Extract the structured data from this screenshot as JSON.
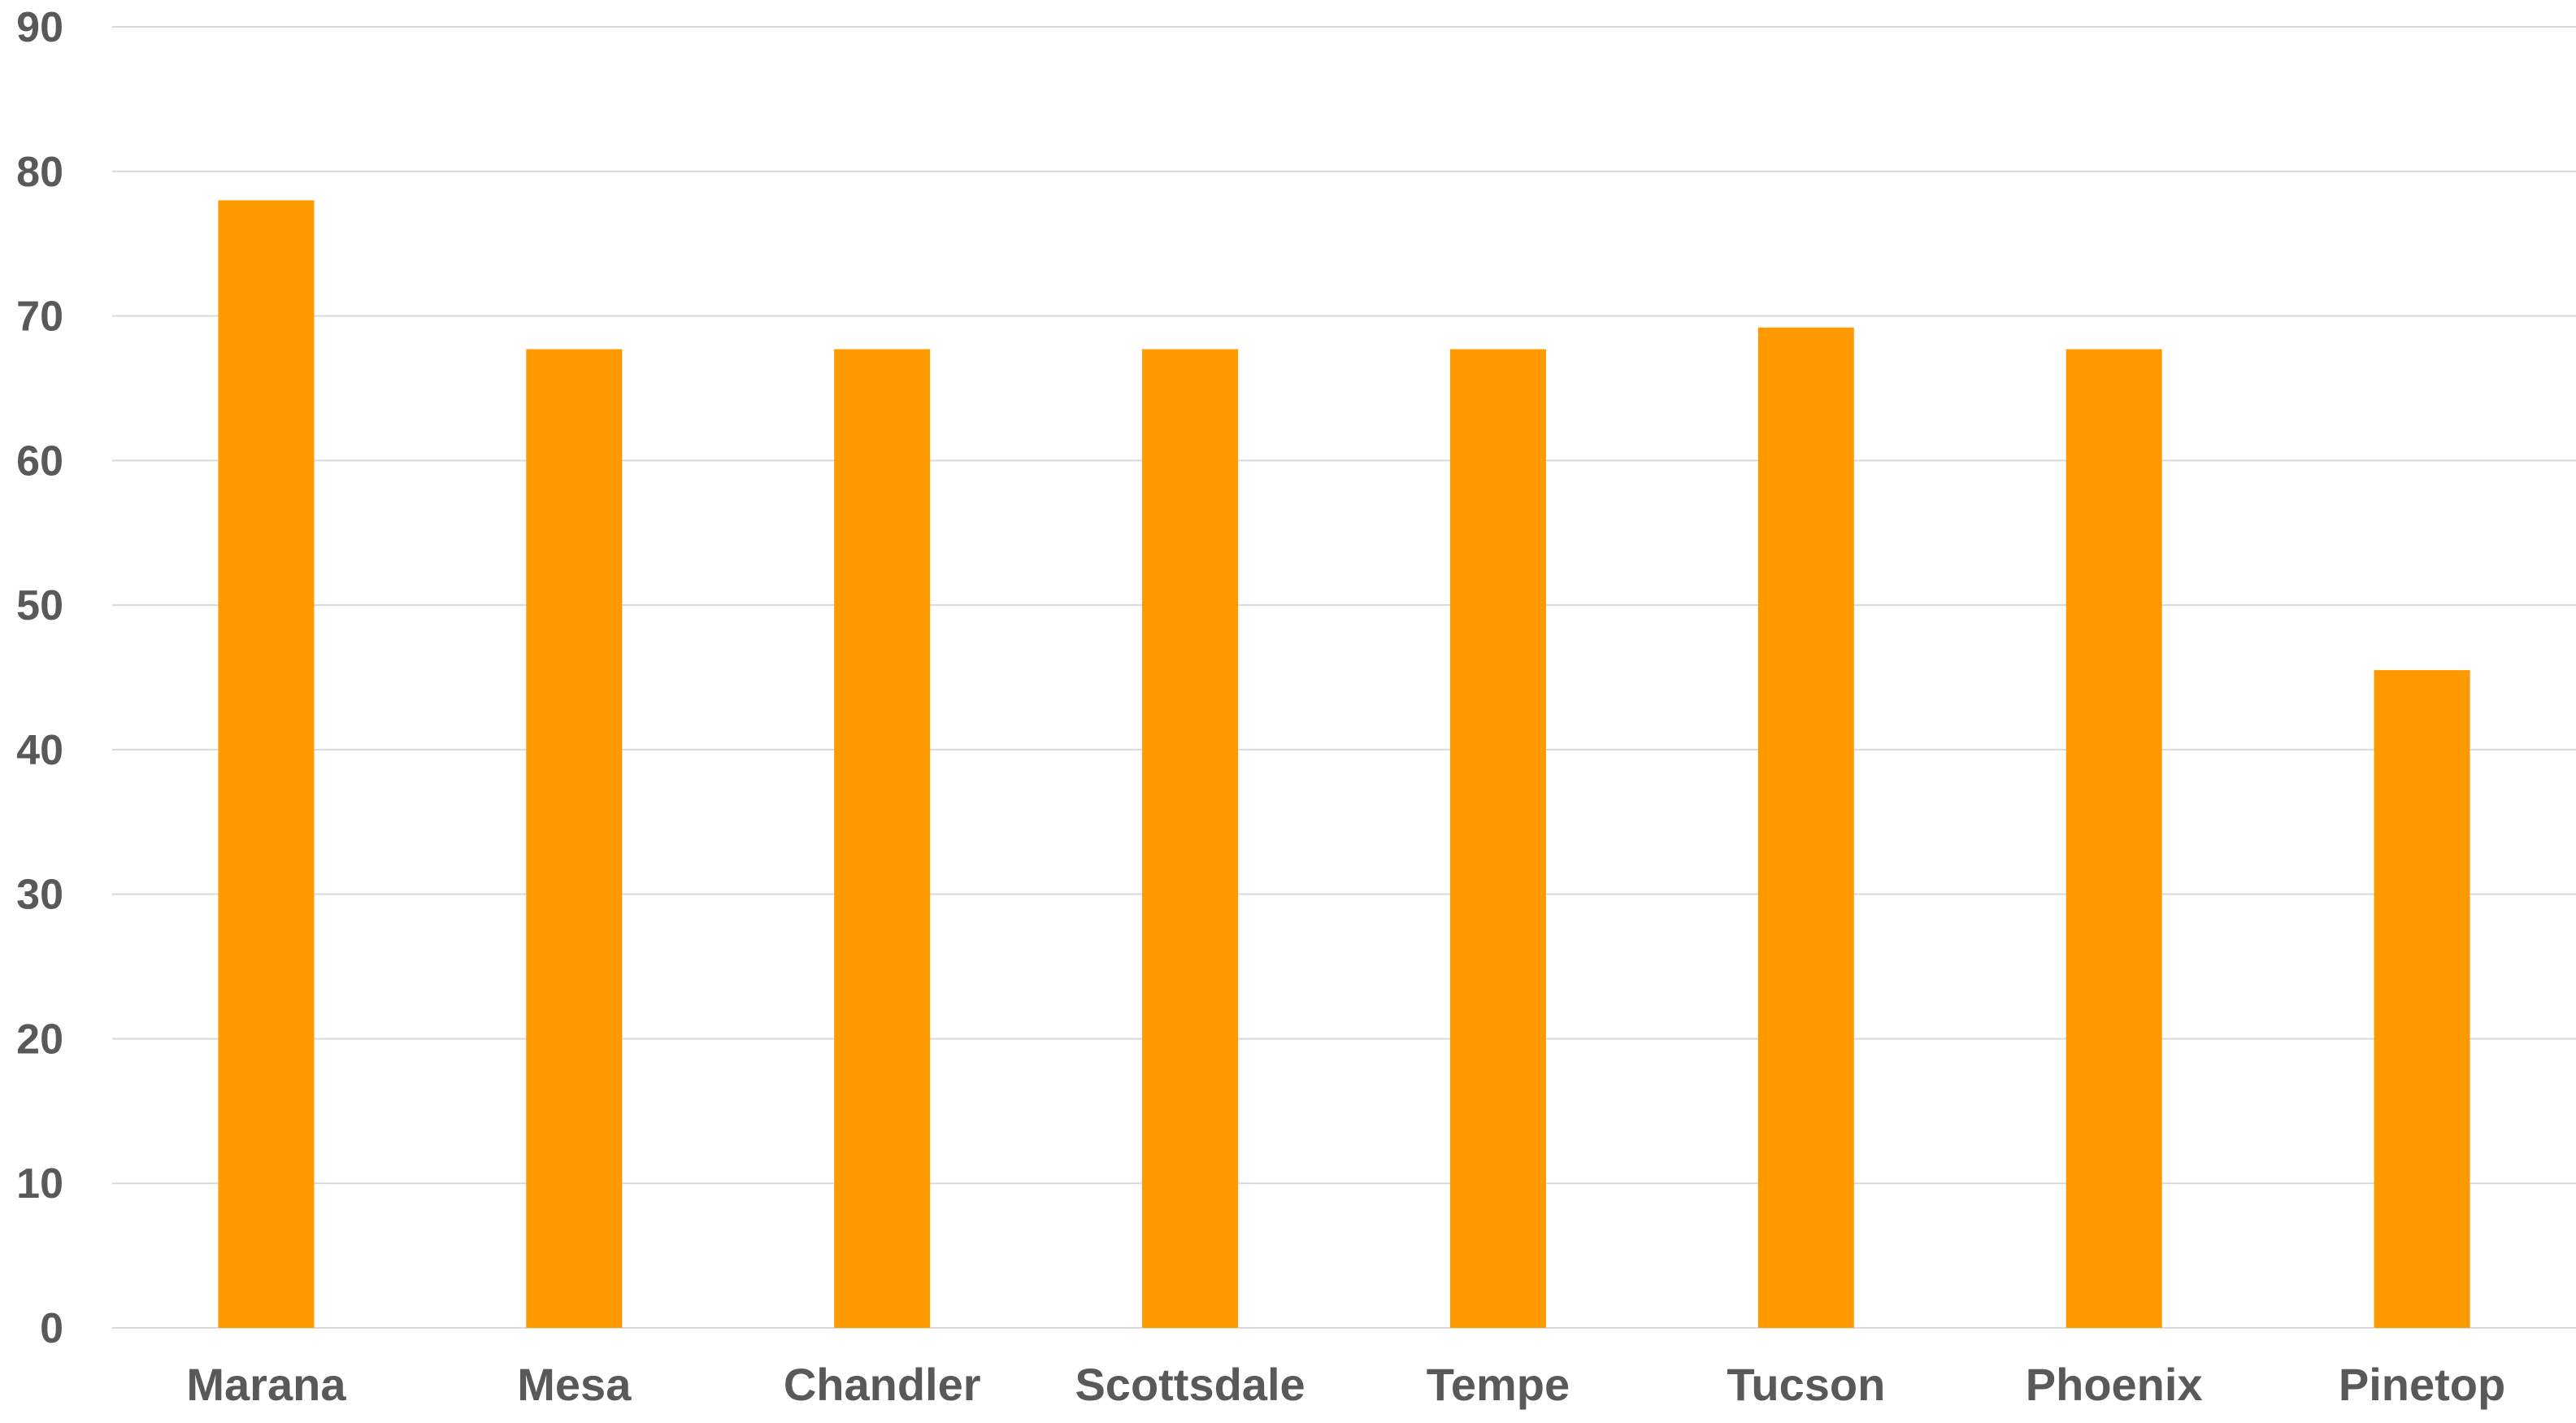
{
  "chart_data": {
    "type": "bar",
    "title": "",
    "xlabel": "",
    "ylabel": "",
    "categories": [
      "Marana",
      "Mesa",
      "Chandler",
      "Scottsdale",
      "Tempe",
      "Tucson",
      "Phoenix",
      "Pinetop"
    ],
    "values": [
      78,
      67.7,
      67.7,
      67.7,
      67.7,
      69.2,
      67.7,
      45.5
    ],
    "ylim": [
      0,
      90
    ],
    "yticks": [
      0,
      10,
      20,
      30,
      40,
      50,
      60,
      70,
      80,
      90
    ],
    "grid": true,
    "legend": "none",
    "bar_color": "#FF9900",
    "grid_color": "#D9D9D9"
  }
}
